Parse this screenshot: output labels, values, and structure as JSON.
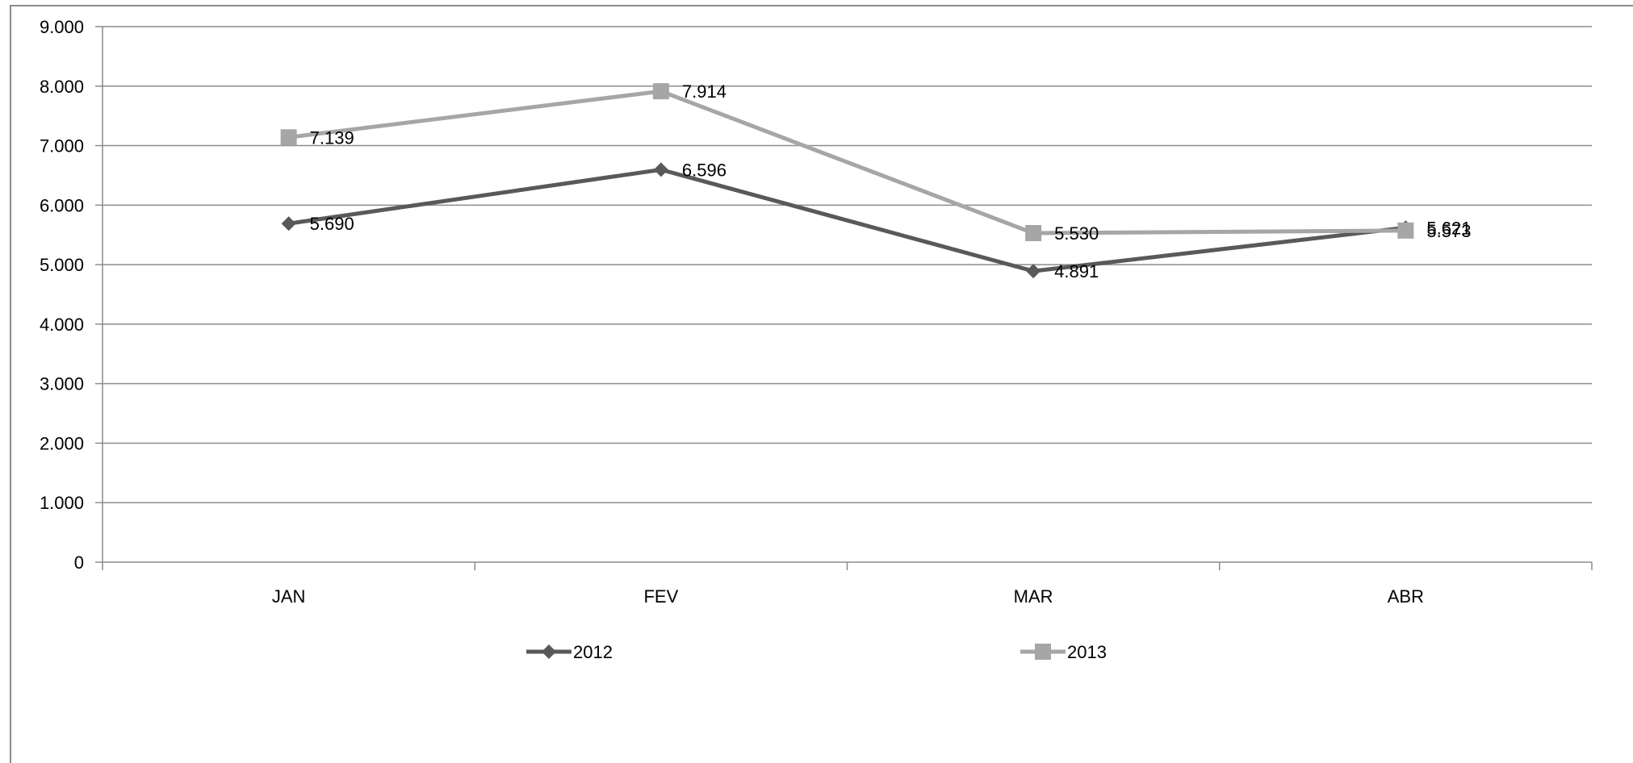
{
  "chart_data": {
    "type": "line",
    "categories": [
      "JAN",
      "FEV",
      "MAR",
      "ABR"
    ],
    "y_ticks": [
      "0",
      "1.000",
      "2.000",
      "3.000",
      "4.000",
      "5.000",
      "6.000",
      "7.000",
      "8.000",
      "9.000"
    ],
    "ylim": [
      0,
      9000
    ],
    "grid": true,
    "legend_position": "bottom",
    "series": [
      {
        "name": "2012",
        "values": [
          5690,
          6596,
          4891,
          5621
        ],
        "labels": [
          "5.690",
          "6.596",
          "4.891",
          "5.621"
        ],
        "color": "#595959",
        "marker": "diamond"
      },
      {
        "name": "2013",
        "values": [
          7139,
          7914,
          5530,
          5573
        ],
        "labels": [
          "7.139",
          "7.914",
          "5.530",
          "5.573"
        ],
        "color": "#a6a6a6",
        "marker": "square"
      }
    ]
  }
}
